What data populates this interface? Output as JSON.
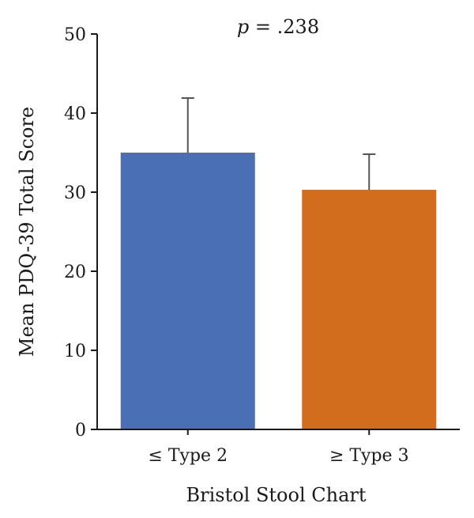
{
  "chart_data": {
    "type": "bar",
    "categories": [
      "≤ Type 2",
      "≥ Type 3"
    ],
    "values": [
      35.0,
      30.3
    ],
    "error_upper": [
      41.9,
      34.8
    ],
    "colors": [
      "#4a6fb5",
      "#d26d1e"
    ],
    "xlabel": "Bristol Stool Chart",
    "ylabel": "Mean PDQ-39 Total Score",
    "ylim": [
      0,
      50
    ],
    "yticks": [
      0,
      10,
      20,
      30,
      40,
      50
    ],
    "annotation": {
      "italic_part": "p",
      "rest": " = .238"
    },
    "grid": false
  }
}
